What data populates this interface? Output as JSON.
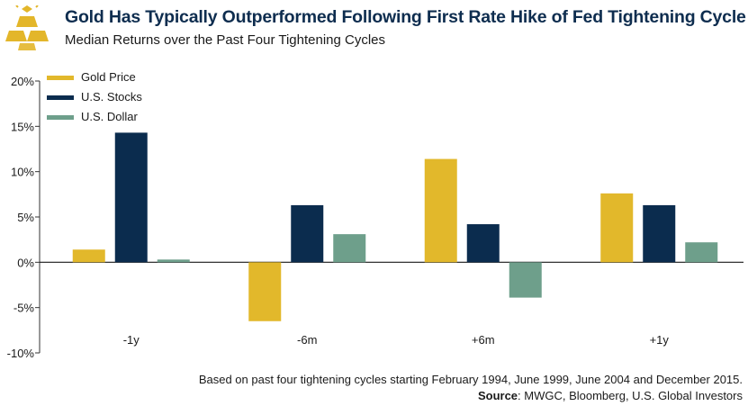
{
  "header": {
    "title": "Gold Has Typically Outperformed Following First Rate Hike of Fed Tightening Cycle",
    "subtitle": "Median Returns over the Past Four Tightening Cycles"
  },
  "footer": {
    "note": "Based on past four tightening cycles starting February 1994, June 1999, June 2004 and December 2015.",
    "source_label": "Source",
    "source_text": ": MWGC, Bloomberg, U.S. Global Investors"
  },
  "logo": {
    "icon": "gold-bars-icon",
    "color": "#e3b62a"
  },
  "chart_data": {
    "type": "bar",
    "categories": [
      "-1y",
      "-6m",
      "+6m",
      "+1y"
    ],
    "series": [
      {
        "name": "Gold Price",
        "color": "#e2b82b",
        "values": [
          1.4,
          -6.5,
          11.4,
          7.6
        ]
      },
      {
        "name": "U.S. Stocks",
        "color": "#0b2c4e",
        "values": [
          14.3,
          6.3,
          4.2,
          6.3
        ]
      },
      {
        "name": "U.S. Dollar",
        "color": "#6e9f8b",
        "values": [
          0.3,
          3.1,
          -3.9,
          2.2
        ]
      }
    ],
    "ylim": [
      -10,
      20
    ],
    "yticks": [
      -10,
      -5,
      0,
      5,
      10,
      15,
      20
    ],
    "ytick_labels": [
      "-10%",
      "-5%",
      "0%",
      "5%",
      "10%",
      "15%",
      "20%"
    ],
    "legend_position": "top-left",
    "grid": false
  }
}
